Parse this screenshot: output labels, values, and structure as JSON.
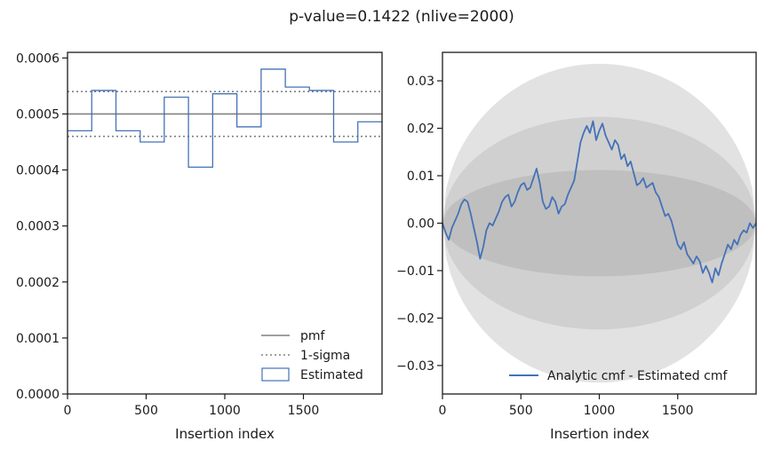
{
  "suptitle": "p-value=0.1422 (nlive=2000)",
  "colors": {
    "estimated": "#4472b8",
    "pmf": "#808080",
    "sigma_band_light": "#e2e2e2",
    "sigma_band_mid": "#d0d0d0",
    "sigma_band_dark": "#bfbfbf"
  },
  "chart_data": [
    {
      "type": "step",
      "xlabel": "Insertion index",
      "ylabel": "",
      "xlim": [
        0,
        2000
      ],
      "ylim": [
        0,
        0.00061
      ],
      "xticks": [
        0,
        500,
        1000,
        1500
      ],
      "xtick_labels": [
        "0",
        "500",
        "1000",
        "1500"
      ],
      "yticks": [
        0,
        0.0001,
        0.0002,
        0.0003,
        0.0004,
        0.0005,
        0.0006
      ],
      "ytick_labels": [
        "0.0000",
        "0.0001",
        "0.0002",
        "0.0003",
        "0.0004",
        "0.0005",
        "0.0006"
      ],
      "legend_position": "lower-right",
      "series": [
        {
          "name": "pmf",
          "style": "solid",
          "y": 0.0005
        },
        {
          "name": "1-sigma",
          "style": "dotted",
          "y": [
            0.00046,
            0.00054
          ]
        },
        {
          "name": "Estimated",
          "style": "step",
          "bin_edges": [
            0,
            154,
            308,
            462,
            615,
            769,
            923,
            1077,
            1231,
            1385,
            1538,
            1692,
            1846,
            2000
          ],
          "values": [
            0.00047,
            0.000542,
            0.00047,
            0.00045,
            0.00053,
            0.000405,
            0.000536,
            0.000477,
            0.00058,
            0.000548,
            0.000542,
            0.00045,
            0.000486
          ]
        }
      ]
    },
    {
      "type": "line",
      "xlabel": "Insertion index",
      "ylabel": "",
      "xlim": [
        0,
        2000
      ],
      "ylim": [
        -0.036,
        0.036
      ],
      "xticks": [
        0,
        500,
        1000,
        1500
      ],
      "xtick_labels": [
        "0",
        "500",
        "1000",
        "1500"
      ],
      "yticks": [
        -0.03,
        -0.02,
        -0.01,
        0.0,
        0.01,
        0.02,
        0.03
      ],
      "ytick_labels": [
        "−0.03",
        "−0.02",
        "−0.01",
        "0.00",
        "0.01",
        "0.02",
        "0.03"
      ],
      "legend_position": "lower-right",
      "sigma_bands_peak": [
        0.0112,
        0.0224,
        0.0336
      ],
      "series": [
        {
          "name": "Analytic cmf - Estimated cmf",
          "x": [
            0,
            20,
            40,
            60,
            80,
            100,
            120,
            140,
            160,
            180,
            200,
            220,
            240,
            260,
            280,
            300,
            320,
            340,
            360,
            380,
            400,
            420,
            440,
            460,
            480,
            500,
            520,
            540,
            560,
            580,
            600,
            620,
            640,
            660,
            680,
            700,
            720,
            740,
            760,
            780,
            800,
            820,
            840,
            860,
            880,
            900,
            920,
            940,
            960,
            980,
            1000,
            1020,
            1040,
            1060,
            1080,
            1100,
            1120,
            1140,
            1160,
            1180,
            1200,
            1220,
            1240,
            1260,
            1280,
            1300,
            1320,
            1340,
            1360,
            1380,
            1400,
            1420,
            1440,
            1460,
            1480,
            1500,
            1520,
            1540,
            1560,
            1580,
            1600,
            1620,
            1640,
            1660,
            1680,
            1700,
            1720,
            1740,
            1760,
            1780,
            1800,
            1820,
            1840,
            1860,
            1880,
            1900,
            1920,
            1940,
            1960,
            1980,
            2000
          ],
          "values": [
            0.0,
            -0.002,
            -0.0035,
            -0.001,
            0.0005,
            0.002,
            0.004,
            0.005,
            0.0045,
            0.002,
            -0.001,
            -0.004,
            -0.0075,
            -0.005,
            -0.0015,
            0.0,
            -0.0005,
            0.001,
            0.0025,
            0.0045,
            0.0055,
            0.006,
            0.0035,
            0.0045,
            0.0065,
            0.008,
            0.0085,
            0.007,
            0.0075,
            0.0095,
            0.0115,
            0.0085,
            0.0045,
            0.003,
            0.0035,
            0.0055,
            0.0045,
            0.002,
            0.0035,
            0.004,
            0.006,
            0.0075,
            0.009,
            0.013,
            0.017,
            0.019,
            0.0205,
            0.019,
            0.0215,
            0.0175,
            0.0195,
            0.021,
            0.0185,
            0.017,
            0.0155,
            0.0175,
            0.0165,
            0.0135,
            0.0145,
            0.012,
            0.013,
            0.0105,
            0.008,
            0.0085,
            0.0095,
            0.0075,
            0.008,
            0.0085,
            0.0065,
            0.0055,
            0.0035,
            0.0015,
            0.002,
            0.0005,
            -0.002,
            -0.0045,
            -0.0055,
            -0.004,
            -0.0065,
            -0.0075,
            -0.0085,
            -0.007,
            -0.008,
            -0.0105,
            -0.009,
            -0.0105,
            -0.0125,
            -0.0095,
            -0.011,
            -0.0085,
            -0.0065,
            -0.0045,
            -0.0055,
            -0.0035,
            -0.0045,
            -0.0025,
            -0.0015,
            -0.002,
            0.0,
            -0.001,
            0.0
          ]
        }
      ]
    }
  ]
}
